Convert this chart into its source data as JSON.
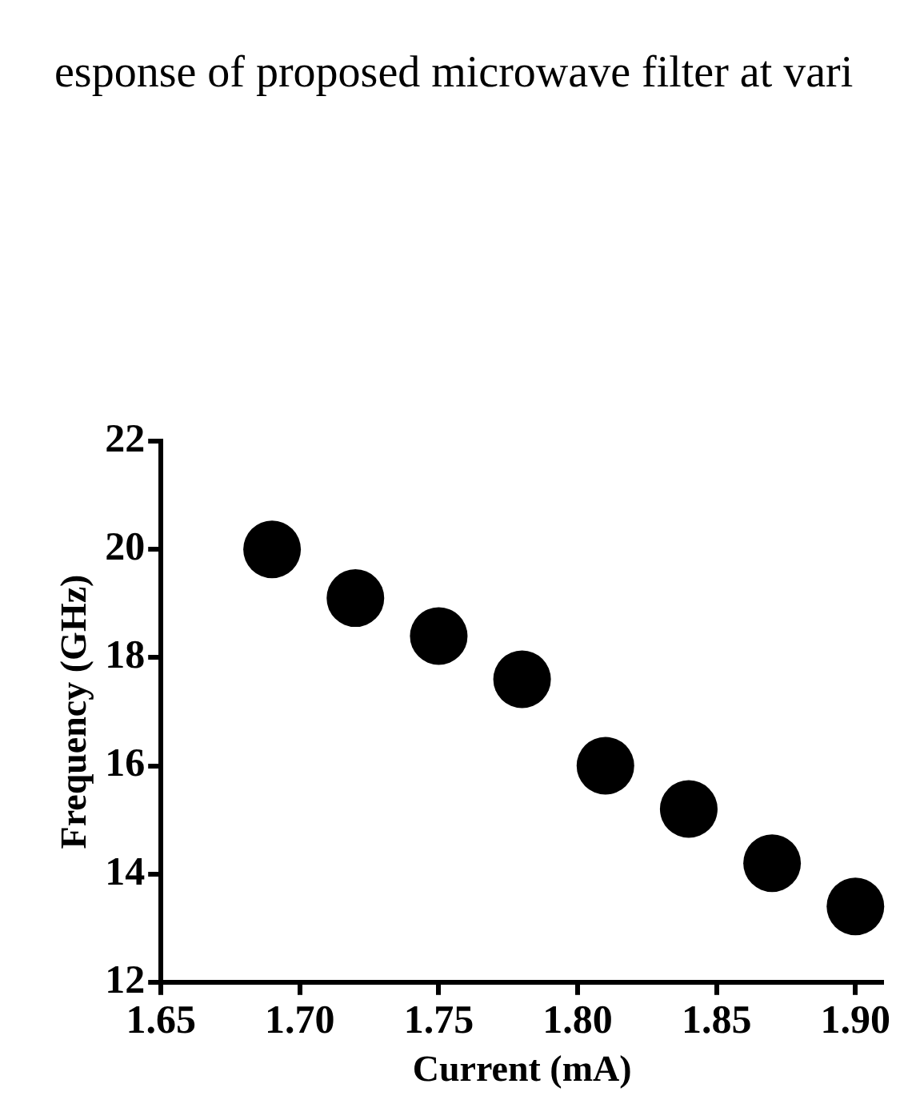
{
  "chart_data": {
    "type": "scatter",
    "title": "esponse of proposed microwave filter at vari",
    "xlabel": "Current (mA)",
    "ylabel": "Frequency (GHz)",
    "x": [
      1.69,
      1.72,
      1.75,
      1.78,
      1.81,
      1.84,
      1.87,
      1.9
    ],
    "values": [
      20.0,
      19.1,
      18.4,
      17.6,
      16.0,
      15.2,
      14.2,
      13.4
    ],
    "color": "#000000",
    "xlim": [
      1.65,
      1.91
    ],
    "xticks": [
      1.65,
      {
        "value": 1.7,
        "label": "1.70"
      },
      1.75,
      {
        "value": 1.8,
        "label": "1.80"
      },
      1.85,
      {
        "value": 1.9,
        "label": "1.90"
      }
    ],
    "ylim": [
      12,
      22
    ],
    "yticks": [
      12,
      14,
      16,
      18,
      20,
      22
    ],
    "marker": "circle",
    "legend": false,
    "grid": false
  }
}
